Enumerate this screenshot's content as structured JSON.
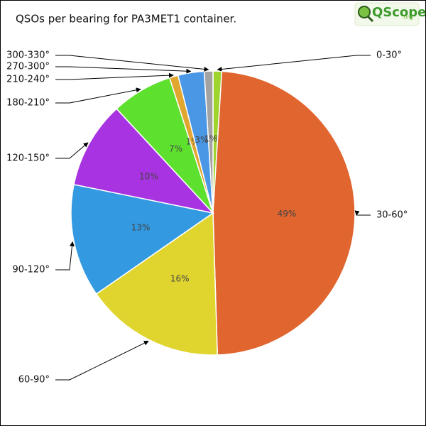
{
  "chart_data": {
    "type": "pie",
    "title": "QSOs per bearing for PA3MET1 container.",
    "logo": "QScope",
    "logo_suffix": ".org",
    "categories": [
      "0-30°",
      "30-60°",
      "60-90°",
      "90-120°",
      "120-150°",
      "180-210°",
      "210-240°",
      "270-300°",
      "300-330°"
    ],
    "values": [
      1,
      49,
      16,
      13,
      10,
      7,
      1,
      3,
      1
    ],
    "value_labels": [
      "1%",
      "49%",
      "16%",
      "13%",
      "10%",
      "7%",
      "1%",
      "3%",
      "1%"
    ],
    "colors": [
      "#9fd42f",
      "#e0652f",
      "#e0d52f",
      "#3399e0",
      "#a833e0",
      "#5ee02f",
      "#e0a62f",
      "#4a97e6",
      "#a3a3a3"
    ]
  }
}
